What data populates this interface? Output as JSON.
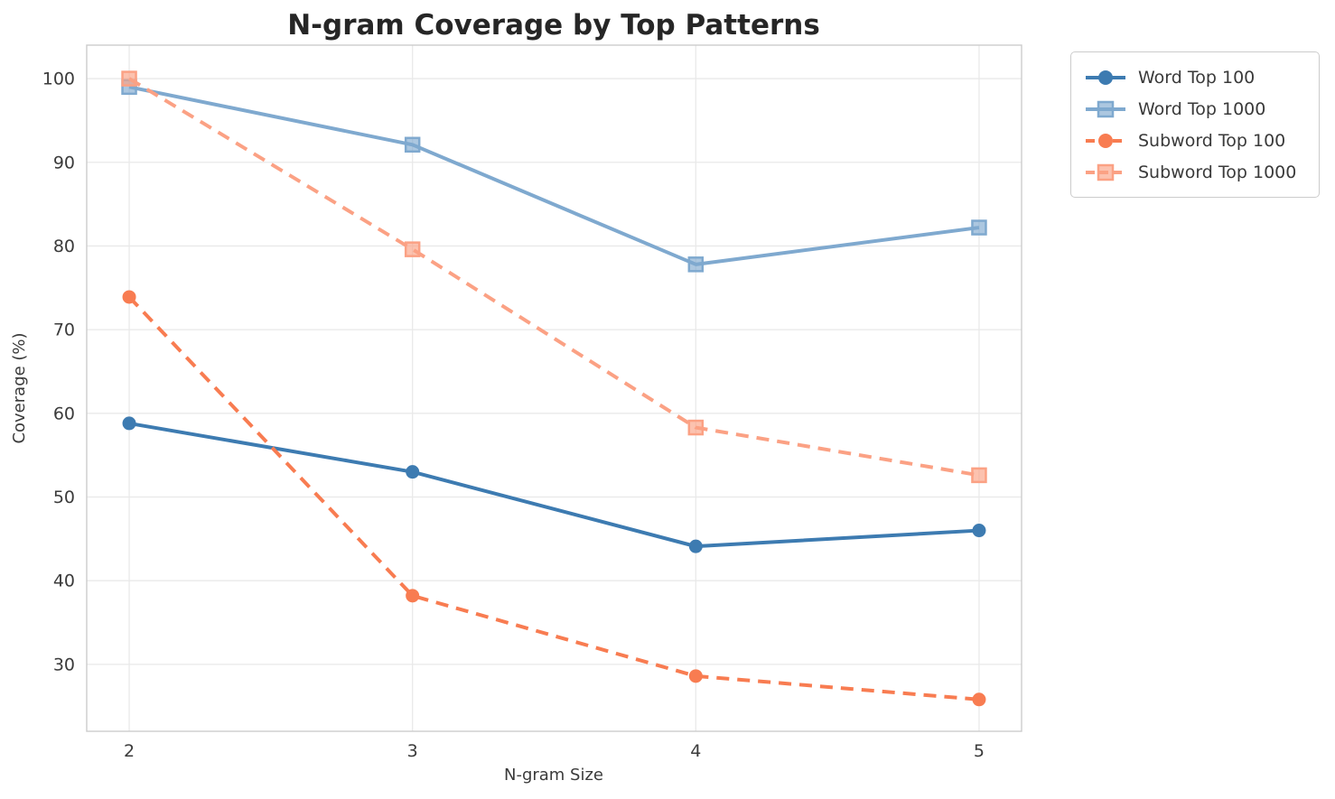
{
  "chart_data": {
    "type": "line",
    "title": "N-gram Coverage by Top Patterns",
    "xlabel": "N-gram Size",
    "ylabel": "Coverage (%)",
    "x": [
      2,
      3,
      4,
      5
    ],
    "x_tick_labels": [
      "2",
      "3",
      "4",
      "5"
    ],
    "y_ticks": [
      30,
      40,
      50,
      60,
      70,
      80,
      90,
      100
    ],
    "xlim": [
      1.85,
      5.15
    ],
    "ylim": [
      22,
      104
    ],
    "grid": true,
    "legend_position": "outside-upper-right",
    "series": [
      {
        "name": "Word Top 100",
        "color": "#3d7bb1",
        "marker": "circle",
        "line_style": "solid",
        "values": [
          58.8,
          53.0,
          44.1,
          46.0
        ]
      },
      {
        "name": "Word Top 1000",
        "color": "#7fa9cf",
        "marker": "square",
        "line_style": "solid",
        "values": [
          99.0,
          92.1,
          77.8,
          82.2
        ]
      },
      {
        "name": "Subword Top 100",
        "color": "#f87c51",
        "marker": "circle",
        "line_style": "dashed",
        "values": [
          73.9,
          38.2,
          28.6,
          25.8
        ]
      },
      {
        "name": "Subword Top 1000",
        "color": "#fba184",
        "marker": "square",
        "line_style": "dashed",
        "values": [
          100.0,
          79.6,
          58.3,
          52.6
        ]
      }
    ],
    "colors": {
      "grid": "#e9e9e9",
      "axes_border": "#cccccc",
      "title_text": "#262626",
      "tick_text": "#3b3b3b"
    }
  }
}
